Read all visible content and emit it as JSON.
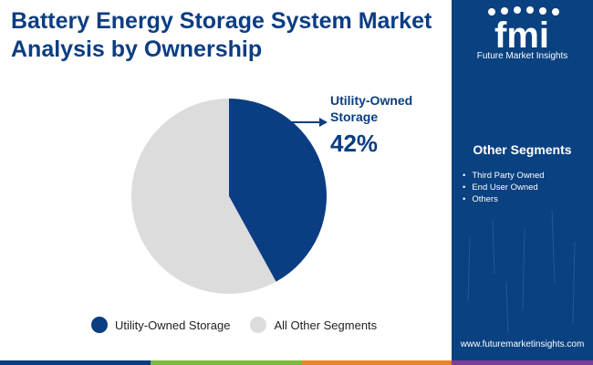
{
  "title_lines": [
    "Battery Energy Storage System Market",
    "Analysis by Ownership"
  ],
  "chart_data": {
    "type": "pie",
    "slices": [
      {
        "label": "Utility-Owned Storage",
        "value": 42,
        "color": "#0b3d82"
      },
      {
        "label": "All Other Segments",
        "value": 58,
        "color": "#dcdcdc"
      }
    ],
    "callout": {
      "label_lines": [
        "Utility-Owned",
        "Storage"
      ],
      "value_text": "42%"
    },
    "legend": [
      "Utility-Owned Storage",
      "All Other Segments"
    ],
    "legend_position": "bottom"
  },
  "sidebar": {
    "logo_text": "fmi",
    "logo_subtitle": "Future Market Insights",
    "other_segments_title": "Other Segments",
    "other_segments": [
      "Third Party Owned",
      "End User Owned",
      "Others"
    ],
    "website": "www.futuremarketinsights.com"
  },
  "colors": {
    "brand_navy": "#0b3d82",
    "sidebar_bg": "#0a4180",
    "other_gray": "#dcdcdc",
    "bottom_bar": [
      "#0b3d82",
      "#7cb940",
      "#e7852b",
      "#7b3f98"
    ]
  }
}
